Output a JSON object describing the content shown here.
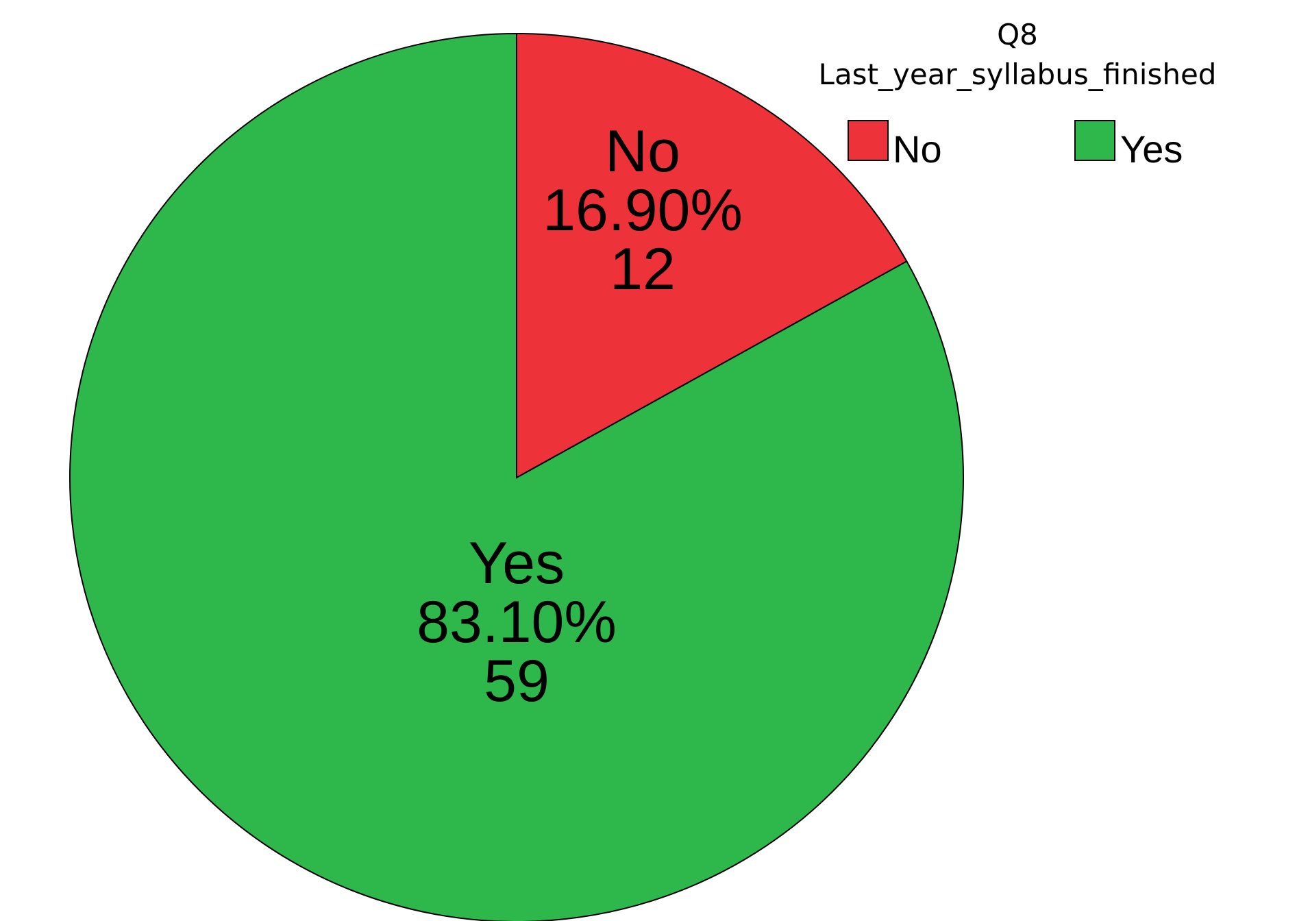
{
  "chart_data": {
    "type": "pie",
    "legend": {
      "title_line1": "Q8",
      "title_line2": "Last_year_syllabus_finished",
      "placement": "top-right"
    },
    "slices": [
      {
        "label": "No",
        "percent_label": "16.90%",
        "count_label": "12",
        "value": 12,
        "color": "#EE3239"
      },
      {
        "label": "Yes",
        "percent_label": "83.10%",
        "count_label": "59",
        "value": 59,
        "color": "#2EB74A"
      }
    ],
    "start_angle": "12 o'clock",
    "direction": "clockwise"
  }
}
